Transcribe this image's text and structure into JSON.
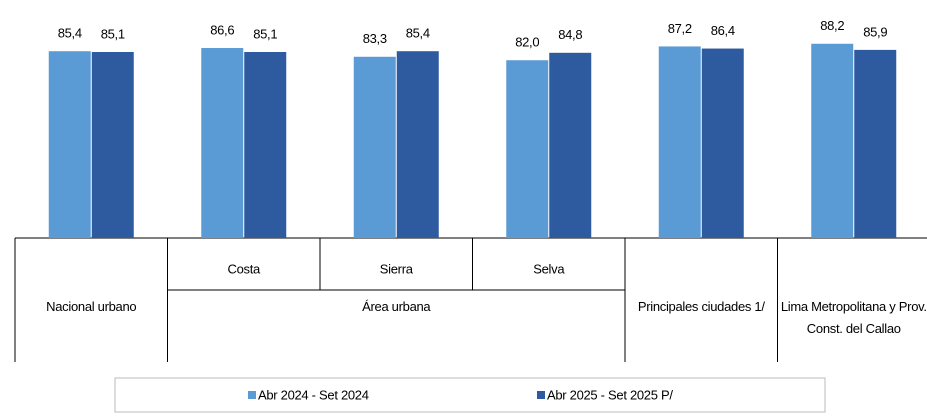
{
  "chart_data": {
    "type": "bar",
    "groups": [
      {
        "name": "Nacional urbano",
        "categories": [
          null
        ]
      },
      {
        "name": "Área urbana",
        "categories": [
          "Costa",
          "Sierra",
          "Selva"
        ]
      },
      {
        "name": "Principales ciudades 1/",
        "categories": [
          null
        ]
      },
      {
        "name": "Lima Metropolitana y Prov. Const. del Callao",
        "categories": [
          null
        ]
      }
    ],
    "series": [
      {
        "name": "Abr 2024 - Set 2024",
        "color": "#5b9bd5",
        "values": [
          85.4,
          86.6,
          83.3,
          82.0,
          87.2,
          88.2
        ],
        "value_labels": [
          "85,4",
          "86,6",
          "83,3",
          "82,0",
          "87,2",
          "88,2"
        ]
      },
      {
        "name": "Abr 2025 - Set 2025 P/",
        "color": "#2e5aa0",
        "values": [
          85.1,
          85.1,
          85.4,
          84.8,
          86.4,
          85.9
        ],
        "value_labels": [
          "85,1",
          "85,1",
          "85,4",
          "84,8",
          "86,4",
          "85,9"
        ]
      }
    ],
    "ylim": [
      15,
      90
    ],
    "legend": "bottom"
  }
}
